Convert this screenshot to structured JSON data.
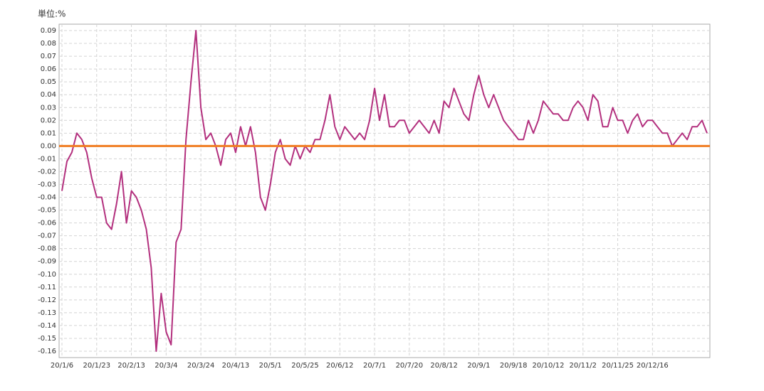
{
  "chart_data": {
    "type": "line",
    "ylabel": "単位:%",
    "categories": [
      "20/1/6",
      null,
      null,
      null,
      null,
      null,
      null,
      "20/1/23",
      null,
      null,
      null,
      null,
      null,
      null,
      "20/2/13",
      null,
      null,
      null,
      null,
      null,
      null,
      "20/3/4",
      null,
      null,
      null,
      null,
      null,
      null,
      "20/3/24",
      null,
      null,
      null,
      null,
      null,
      null,
      "20/4/13",
      null,
      null,
      null,
      null,
      null,
      null,
      "20/5/1",
      null,
      null,
      null,
      null,
      null,
      null,
      "20/5/25",
      null,
      null,
      null,
      null,
      null,
      null,
      "20/6/12",
      null,
      null,
      null,
      null,
      null,
      null,
      "20/7/1",
      null,
      null,
      null,
      null,
      null,
      null,
      "20/7/20",
      null,
      null,
      null,
      null,
      null,
      null,
      "20/8/12",
      null,
      null,
      null,
      null,
      null,
      null,
      "20/9/1",
      null,
      null,
      null,
      null,
      null,
      null,
      "20/9/18",
      null,
      null,
      null,
      null,
      null,
      null,
      "20/10/12",
      null,
      null,
      null,
      null,
      null,
      null,
      "20/11/2",
      null,
      null,
      null,
      null,
      null,
      null,
      "20/11/25",
      null,
      null,
      null,
      null,
      null,
      null,
      "20/12/16",
      null,
      null,
      null,
      null,
      null,
      null,
      null,
      null,
      null,
      null,
      null
    ],
    "values": [
      -0.035,
      -0.012,
      -0.005,
      0.01,
      0.005,
      -0.005,
      -0.025,
      -0.04,
      -0.04,
      -0.06,
      -0.065,
      -0.045,
      -0.02,
      -0.06,
      -0.035,
      -0.04,
      -0.05,
      -0.065,
      -0.095,
      -0.16,
      -0.115,
      -0.145,
      -0.155,
      -0.075,
      -0.065,
      0.005,
      0.05,
      0.09,
      0.03,
      0.005,
      0.01,
      0.0,
      -0.015,
      0.005,
      0.01,
      -0.005,
      0.015,
      0.0,
      0.015,
      -0.005,
      -0.04,
      -0.05,
      -0.03,
      -0.005,
      0.005,
      -0.01,
      -0.015,
      0.0,
      -0.01,
      0.0,
      -0.005,
      0.005,
      0.005,
      0.02,
      0.04,
      0.015,
      0.005,
      0.015,
      0.01,
      0.005,
      0.01,
      0.005,
      0.02,
      0.045,
      0.02,
      0.04,
      0.015,
      0.015,
      0.02,
      0.02,
      0.01,
      0.015,
      0.02,
      0.015,
      0.01,
      0.02,
      0.01,
      0.035,
      0.03,
      0.045,
      0.035,
      0.025,
      0.02,
      0.04,
      0.055,
      0.04,
      0.03,
      0.04,
      0.03,
      0.02,
      0.015,
      0.01,
      0.005,
      0.005,
      0.02,
      0.01,
      0.02,
      0.035,
      0.03,
      0.025,
      0.025,
      0.02,
      0.02,
      0.03,
      0.035,
      0.03,
      0.02,
      0.04,
      0.035,
      0.015,
      0.015,
      0.03,
      0.02,
      0.02,
      0.01,
      0.02,
      0.025,
      0.015,
      0.02,
      0.02,
      0.015,
      0.01,
      0.01,
      0.0,
      0.005,
      0.01,
      0.005,
      0.015,
      0.015,
      0.02,
      0.01
    ],
    "color": "#b3307e",
    "reference_line": {
      "value": 0,
      "color": "#f07d22"
    },
    "ylim": [
      -0.165,
      0.095
    ],
    "yticks": [
      0.09,
      0.08,
      0.07,
      0.06,
      0.05,
      0.04,
      0.03,
      0.02,
      0.01,
      {
        "value": 0,
        "label": "0.00"
      },
      -0.01,
      -0.02,
      -0.03,
      -0.04,
      -0.05,
      -0.06,
      -0.07,
      -0.08,
      -0.09,
      {
        "value": -0.1,
        "label": "-0.10"
      },
      -0.11,
      -0.12,
      -0.13,
      -0.14,
      -0.15,
      -0.16
    ],
    "grid": true
  }
}
